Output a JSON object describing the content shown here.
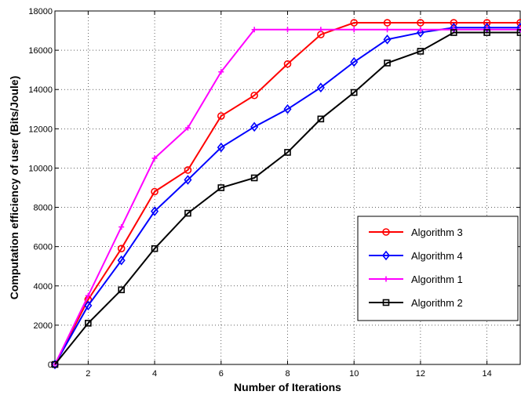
{
  "chart_data": {
    "type": "line",
    "title": "",
    "xlabel": "Number of Iterations",
    "ylabel": "Computation efficiency of user (Bits/Joule)",
    "xlim": [
      1,
      15
    ],
    "ylim": [
      0,
      18000
    ],
    "xticks": [
      2,
      4,
      6,
      8,
      10,
      12,
      14
    ],
    "yticks": [
      0,
      2000,
      4000,
      6000,
      8000,
      10000,
      12000,
      14000,
      16000,
      18000
    ],
    "grid": true,
    "legend_position": "right",
    "x": [
      1,
      2,
      3,
      4,
      5,
      6,
      7,
      8,
      9,
      10,
      11,
      12,
      13,
      14,
      15
    ],
    "series": [
      {
        "name": "Algorithm 3",
        "color": "#ff0000",
        "marker": "circle",
        "values": [
          0,
          3300,
          5900,
          8800,
          9900,
          12650,
          13700,
          15300,
          16800,
          17400,
          17400,
          17400,
          17400,
          17400,
          17400
        ]
      },
      {
        "name": "Algorithm 4",
        "color": "#0000ff",
        "marker": "diamond",
        "values": [
          0,
          3000,
          5300,
          7800,
          9400,
          11050,
          12100,
          13000,
          14100,
          15400,
          16550,
          16900,
          17150,
          17150,
          17150
        ]
      },
      {
        "name": "Algorithm 1",
        "color": "#ff00ff",
        "marker": "plus",
        "values": [
          0,
          3500,
          7000,
          10500,
          12050,
          14900,
          17050,
          17050,
          17050,
          17050,
          17050,
          17050,
          17050,
          17050,
          17050
        ]
      },
      {
        "name": "Algorithm 2",
        "color": "#000000",
        "marker": "square",
        "values": [
          0,
          2100,
          3800,
          5900,
          7700,
          9000,
          9500,
          10800,
          12500,
          13850,
          15350,
          15950,
          16900,
          16900,
          16900
        ]
      }
    ]
  }
}
